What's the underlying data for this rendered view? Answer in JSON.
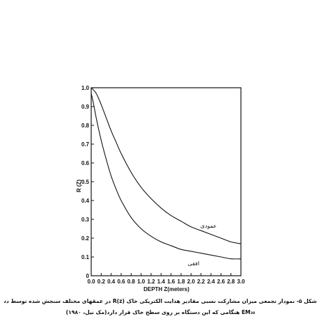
{
  "chart_data": {
    "type": "line",
    "xlabel": "DEPTH Z(meters)",
    "ylabel": "R (Z)",
    "xlim": [
      0,
      3.0
    ],
    "ylim": [
      0,
      1.0
    ],
    "x_ticks": [
      "0.0",
      "0.2",
      "0.4",
      "0.6",
      "0.8",
      "1.0",
      "1.2",
      "1.4",
      "1.6",
      "1.8",
      "2.0",
      "2.2",
      "2.4",
      "2.6",
      "2.8",
      "3.0"
    ],
    "y_ticks": [
      "0",
      "0.1",
      "0.2",
      "0.3",
      "0.4",
      "0.5",
      "0.6",
      "0.7",
      "0.8",
      "0.9",
      "1.0"
    ],
    "grid": false,
    "series": [
      {
        "name": "عمودی",
        "x": [
          0,
          0.1,
          0.2,
          0.3,
          0.4,
          0.5,
          0.6,
          0.8,
          1.0,
          1.2,
          1.4,
          1.6,
          1.8,
          2.0,
          2.2,
          2.4,
          2.6,
          2.8,
          3.0
        ],
        "y": [
          1.0,
          0.97,
          0.91,
          0.84,
          0.77,
          0.71,
          0.65,
          0.55,
          0.47,
          0.41,
          0.36,
          0.32,
          0.29,
          0.26,
          0.24,
          0.22,
          0.2,
          0.18,
          0.17
        ]
      },
      {
        "name": "افقی",
        "x": [
          0,
          0.05,
          0.1,
          0.2,
          0.3,
          0.4,
          0.5,
          0.6,
          0.8,
          1.0,
          1.2,
          1.4,
          1.6,
          1.8,
          2.0,
          2.2,
          2.4,
          2.6,
          2.8,
          3.0
        ],
        "y": [
          0.97,
          0.91,
          0.84,
          0.72,
          0.62,
          0.53,
          0.46,
          0.4,
          0.31,
          0.25,
          0.21,
          0.18,
          0.16,
          0.14,
          0.13,
          0.12,
          0.11,
          0.1,
          0.09,
          0.09
        ]
      }
    ]
  },
  "caption": {
    "line1": "شکل ۵- نمودار تجمعی میزان مشارکت نسبی مقادیر هدایت الکتریکی خاک R(z) در عمقهای مختلف سنجش شده توسط دستگاه",
    "line2": "EM₃₈ هنگامی که این دستگاه بر روی سطح خاک قرار دارد(مک نیل، ۱۹۸۰)"
  }
}
